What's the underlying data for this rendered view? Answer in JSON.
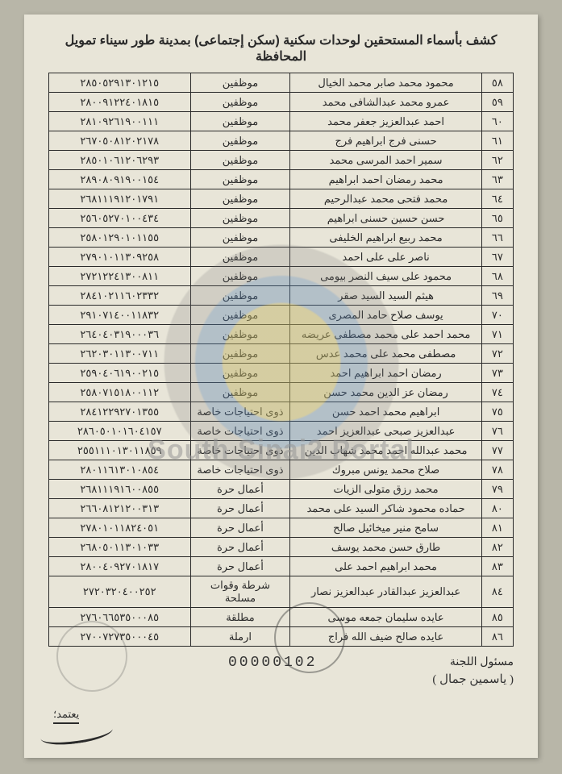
{
  "title": "كشف بأسماء المستحقين لوحدات سكنية (سكن إجتماعى) بمدينة طور سيناء تمويل المحافظة",
  "watermark_text": "South Sinai2 Portal",
  "page_number": "00000102",
  "footer": {
    "responsible": "مسئول اللجنة",
    "responsible_sig": "( ياسمين جمال )",
    "approve": "يعتمد؛"
  },
  "columns": {
    "num": "",
    "name": "",
    "category": "",
    "id": ""
  },
  "rows": [
    {
      "n": "٥٨",
      "name": "محمود محمد صابر محمد الخيال",
      "cat": "موظفين",
      "id": "٢٨٥٠٥٢٩١٣٠١٢١٥"
    },
    {
      "n": "٥٩",
      "name": "عمرو محمد عبدالشافى محمد",
      "cat": "موظفين",
      "id": "٢٨٠٠٩١٢٢٤٠١٨١٥"
    },
    {
      "n": "٦٠",
      "name": "احمد عبدالعزيز جعفر محمد",
      "cat": "موظفين",
      "id": "٢٨١٠٩٢٦١٩٠٠١١١"
    },
    {
      "n": "٦١",
      "name": "حسنى فرج ابراهيم فرج",
      "cat": "موظفين",
      "id": "٢٦٧٠٥٠٨١٢٠٢١٧٨"
    },
    {
      "n": "٦٢",
      "name": "سمير احمد المرسى محمد",
      "cat": "موظفين",
      "id": "٢٨٥٠١٠٦١٢٠٦٢٩٣"
    },
    {
      "n": "٦٣",
      "name": "محمد رمضان احمد ابراهيم",
      "cat": "موظفين",
      "id": "٢٨٩٠٨٠٩١٩٠٠١٥٤"
    },
    {
      "n": "٦٤",
      "name": "محمد فتحى محمد عبدالرحيم",
      "cat": "موظفين",
      "id": "٢٦٨١١١٩١٢٠١٧٩١"
    },
    {
      "n": "٦٥",
      "name": "حسن حسين حسنى ابراهيم",
      "cat": "موظفين",
      "id": "٢٥٦٠٥٢٧٠١٠٠٤٣٤"
    },
    {
      "n": "٦٦",
      "name": "محمد ربيع ابراهيم الخليفى",
      "cat": "موظفين",
      "id": "٢٥٨٠١٢٩٠١٠١١٥٥"
    },
    {
      "n": "٦٧",
      "name": "ناصر على على احمد",
      "cat": "موظفين",
      "id": "٢٧٩٠١٠١١٣٠٩٢٥٨"
    },
    {
      "n": "٦٨",
      "name": "محمود على سيف النصر بيومى",
      "cat": "موظفين",
      "id": "٢٧٢١٢٢٤١٣٠٠٨١١"
    },
    {
      "n": "٦٩",
      "name": "هيثم السيد السيد صقر",
      "cat": "موظفين",
      "id": "٢٨٤١٠٢١١٦٠٢٣٣٢"
    },
    {
      "n": "٧٠",
      "name": "يوسف صلاح حامد المصرى",
      "cat": "موظفين",
      "id": "٢٩١٠٧١٤٠٠١١٨٣٢"
    },
    {
      "n": "٧١",
      "name": "محمد احمد على محمد مصطفى عريضه",
      "cat": "موظفين",
      "id": "٢٦٤٠٤٠٣١٩٠٠٠٣٦"
    },
    {
      "n": "٧٢",
      "name": "مصطفى محمد على محمد عدس",
      "cat": "موظفين",
      "id": "٢٦٢٠٣٠١١٣٠٠٧١١"
    },
    {
      "n": "٧٣",
      "name": "رمضان احمد ابراهيم احمد",
      "cat": "موظفين",
      "id": "٢٥٩٠٤٠٦١٩٠٠٢١٥"
    },
    {
      "n": "٧٤",
      "name": "رمضان عز الدين محمد حسن",
      "cat": "موظفين",
      "id": "٢٥٨٠٧١٥١٨٠٠١١٢"
    },
    {
      "n": "٧٥",
      "name": "ابراهيم محمد احمد حسن",
      "cat": "ذوى احتياجات خاصة",
      "id": "٢٨٤١٢٢٩٢٧٠١٣٥٥"
    },
    {
      "n": "٧٦",
      "name": "عبدالعزيز صبحى عبدالعزيز احمد",
      "cat": "ذوى احتياجات خاصة",
      "id": "٢٨٦٠٥٠١٠١٦٠٤١٥٧"
    },
    {
      "n": "٧٧",
      "name": "محمد عبدالله احمد محمد شهاب الدين",
      "cat": "ذوى احتياجات خاصة",
      "id": "٢٥٥١١١٠١٣٠١١٨٥٩"
    },
    {
      "n": "٧٨",
      "name": "صلاح محمد يونس مبروك",
      "cat": "ذوى احتياجات خاصة",
      "id": "٢٨٠١١٦١٣٠١٠٨٥٤"
    },
    {
      "n": "٧٩",
      "name": "محمد رزق متولى الزيات",
      "cat": "أعمال حرة",
      "id": "٢٦٨١١١٩١٦٠٠٨٥٥"
    },
    {
      "n": "٨٠",
      "name": "حماده محمود شاكر السيد على محمد",
      "cat": "أعمال حرة",
      "id": "٢٦٦٠٨١٢١٢٠٠٣١٣"
    },
    {
      "n": "٨١",
      "name": "سامح منير ميخائيل صالح",
      "cat": "أعمال حرة",
      "id": "٢٧٨٠١٠١١٨٢٤٠٥١"
    },
    {
      "n": "٨٢",
      "name": "طارق حسن محمد يوسف",
      "cat": "أعمال حرة",
      "id": "٢٦٨٠٥٠١١٣٠١٠٣٣"
    },
    {
      "n": "٨٣",
      "name": "محمد ابراهيم احمد على",
      "cat": "أعمال حرة",
      "id": "٢٨٠٠٤٠٩٢٧٠١٨١٧"
    },
    {
      "n": "٨٤",
      "name": "عبدالعزيز عبدالقادر عبدالعزيز نصار",
      "cat": "شرطة وقوات مسلحة",
      "id": "٢٧٢٠٣٢٠٤٠٠٢٥٢"
    },
    {
      "n": "٨٥",
      "name": "عايده سليمان جمعه موسى",
      "cat": "مطلقة",
      "id": "٢٧٦٠٦٦٥٣٥٠٠٠٨٥"
    },
    {
      "n": "٨٦",
      "name": "عايده صالح ضيف الله فراج",
      "cat": "ارملة",
      "id": "٢٧٠٠٧٢٧٣٥٠٠٠٤٥"
    }
  ]
}
